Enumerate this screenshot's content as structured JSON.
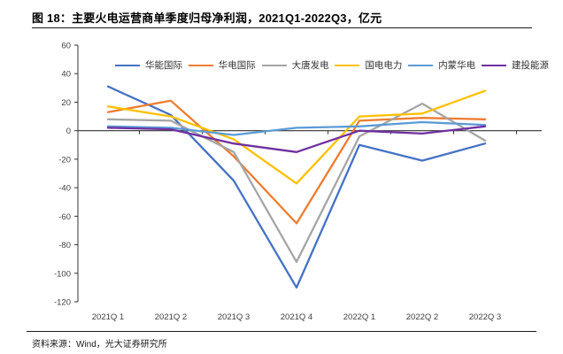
{
  "header": {
    "title": "图 18：主要火电运营商单季度归母净利润，2021Q1-2022Q3，亿元"
  },
  "footer": {
    "source": "资料来源：Wind，光大证券研究所"
  },
  "colors": {
    "separator": "#1a1a1a",
    "axis_line": "#333333",
    "tick_label": "#404040"
  },
  "chart_data": {
    "type": "line",
    "title": "主要火电运营商单季度归母净利润",
    "unit": "亿元",
    "categories": [
      "2021Q 1",
      "2021Q 2",
      "2021Q 3",
      "2021Q 4",
      "2022Q 1",
      "2022Q 2",
      "2022Q 3"
    ],
    "series": [
      {
        "name": "华能国际",
        "color": "#4472C4",
        "values": [
          31,
          11,
          -35,
          -110,
          -10,
          -21,
          -9
        ]
      },
      {
        "name": "华电国际",
        "color": "#ED7D31",
        "values": [
          13,
          21,
          -18,
          -65,
          7,
          9,
          8
        ]
      },
      {
        "name": "大唐发电",
        "color": "#A5A5A5",
        "values": [
          8,
          7,
          -15,
          -92,
          -4,
          19,
          -7
        ]
      },
      {
        "name": "国电电力",
        "color": "#FFC000",
        "values": [
          17,
          10,
          -6,
          -37,
          10,
          12,
          28
        ]
      },
      {
        "name": "内蒙华电",
        "color": "#5B9BD5",
        "values": [
          3,
          2,
          -3,
          2,
          3,
          6,
          4
        ]
      },
      {
        "name": "建投能源",
        "color": "#7030A0",
        "values": [
          2,
          1,
          -9,
          -15,
          0,
          -2,
          3
        ]
      }
    ],
    "ylim": [
      -120,
      60
    ],
    "ytick_step": 20,
    "yticks": [
      60,
      40,
      20,
      0,
      -20,
      -40,
      -60,
      -80,
      -100,
      -120
    ],
    "grid": false,
    "legend_position": "top"
  }
}
